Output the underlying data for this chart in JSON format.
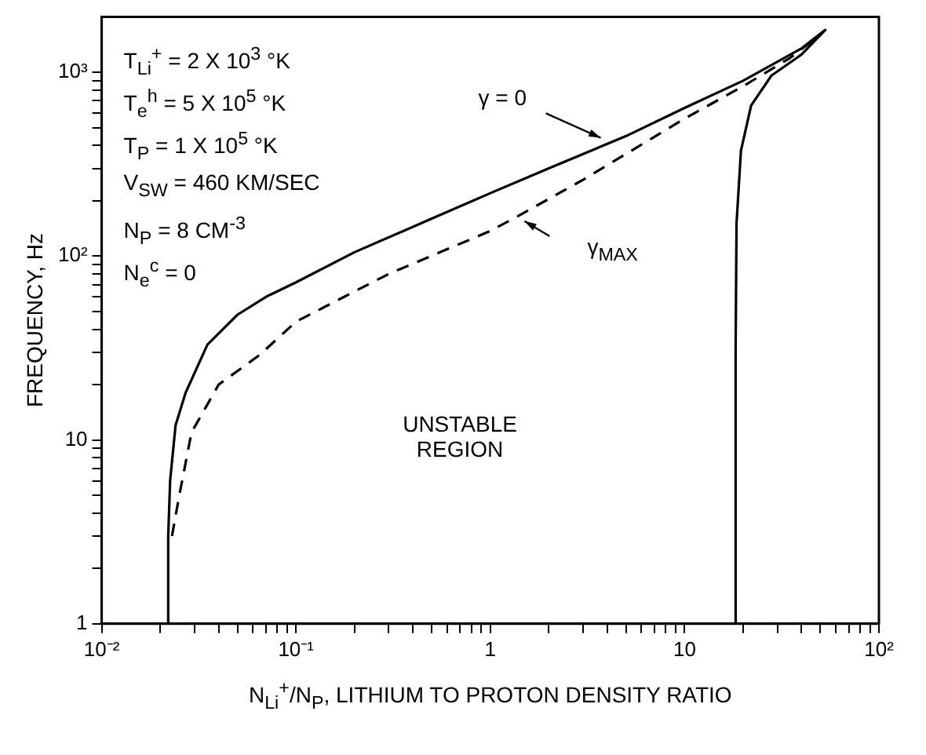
{
  "chart_data": {
    "type": "line",
    "xlabel": "N$_{Li}$$^{+}$/N$_{P}$, LITHIUM TO PROTON DENSITY RATIO",
    "ylabel": "FREQUENCY, Hz",
    "log": "xy",
    "grid": false,
    "legend": false,
    "marker": "none",
    "xlim": [
      0.01,
      100
    ],
    "ylim": [
      1,
      2000
    ],
    "xticks": [
      {
        "value": 0.01,
        "label": "10⁻²"
      },
      {
        "value": 0.02,
        "label": null
      },
      {
        "value": 0.03,
        "label": null
      },
      {
        "value": 0.04,
        "label": null
      },
      {
        "value": 0.05,
        "label": null
      },
      {
        "value": 0.06,
        "label": null
      },
      {
        "value": 0.07,
        "label": null
      },
      {
        "value": 0.08,
        "label": null
      },
      {
        "value": 0.09,
        "label": null
      },
      {
        "value": 0.1,
        "label": "10⁻¹"
      },
      {
        "value": 0.2,
        "label": null
      },
      {
        "value": 0.3,
        "label": null
      },
      {
        "value": 0.4,
        "label": null
      },
      {
        "value": 0.5,
        "label": null
      },
      {
        "value": 0.6,
        "label": null
      },
      {
        "value": 0.7,
        "label": null
      },
      {
        "value": 0.8,
        "label": null
      },
      {
        "value": 0.9,
        "label": null
      },
      1,
      {
        "value": 2,
        "label": null
      },
      {
        "value": 3,
        "label": null
      },
      {
        "value": 4,
        "label": null
      },
      {
        "value": 5,
        "label": null
      },
      {
        "value": 6,
        "label": null
      },
      {
        "value": 7,
        "label": null
      },
      {
        "value": 8,
        "label": null
      },
      {
        "value": 9,
        "label": null
      },
      10,
      {
        "value": 20,
        "label": null
      },
      {
        "value": 30,
        "label": null
      },
      {
        "value": 40,
        "label": null
      },
      {
        "value": 50,
        "label": null
      },
      {
        "value": 60,
        "label": null
      },
      {
        "value": 70,
        "label": null
      },
      {
        "value": 80,
        "label": null
      },
      {
        "value": 90,
        "label": null
      },
      {
        "value": 100,
        "label": "10²"
      }
    ],
    "yticks": [
      1,
      {
        "value": 2,
        "label": null
      },
      {
        "value": 3,
        "label": null
      },
      {
        "value": 4,
        "label": null
      },
      {
        "value": 5,
        "label": null
      },
      {
        "value": 6,
        "label": null
      },
      {
        "value": 7,
        "label": null
      },
      {
        "value": 8,
        "label": null
      },
      {
        "value": 9,
        "label": null
      },
      10,
      {
        "value": 20,
        "label": null
      },
      {
        "value": 30,
        "label": null
      },
      {
        "value": 40,
        "label": null
      },
      {
        "value": 50,
        "label": null
      },
      {
        "value": 60,
        "label": null
      },
      {
        "value": 70,
        "label": null
      },
      {
        "value": 80,
        "label": null
      },
      {
        "value": 90,
        "label": null
      },
      {
        "value": 100,
        "label": "10²"
      },
      {
        "value": 200,
        "label": null
      },
      {
        "value": 300,
        "label": null
      },
      {
        "value": 400,
        "label": null
      },
      {
        "value": 500,
        "label": null
      },
      {
        "value": 600,
        "label": null
      },
      {
        "value": 700,
        "label": null
      },
      {
        "value": 800,
        "label": null
      },
      {
        "value": 900,
        "label": null
      },
      {
        "value": 1000,
        "label": "10³"
      }
    ],
    "series": [
      {
        "color": "#000000",
        "line_style": "solid",
        "x": [
          0.022,
          0.022,
          0.0225,
          0.024,
          0.027,
          0.035,
          0.05,
          0.07,
          0.1,
          0.2,
          0.5,
          1,
          2,
          5,
          10,
          20,
          40,
          53,
          40,
          28,
          22,
          19.5,
          18.5,
          18.3,
          18.3
        ],
        "values": [
          1,
          3,
          6,
          12,
          18,
          33,
          48,
          60,
          72,
          105,
          160,
          220,
          300,
          450,
          640,
          900,
          1350,
          1700,
          1250,
          960,
          660,
          375,
          150,
          30,
          1
        ]
      },
      {
        "color": "#000000",
        "line_style": "dashed",
        "x": [
          0.023,
          0.025,
          0.029,
          0.04,
          0.065,
          0.1,
          0.3,
          1,
          1.4,
          3,
          10,
          20,
          35,
          50
        ],
        "values": [
          3,
          4.9,
          11,
          20,
          29,
          44,
          80,
          137,
          166,
          260,
          560,
          840,
          1200,
          1600
        ]
      }
    ],
    "annotations": [
      "T$_{Li}$$^{+}$ = 2 X 10$^{3}$ °K",
      "T$_{e}$$^{h}$ = 5 X 10$^{5}$ °K",
      "T$_{P}$ = 1 X 10$^{5}$ °K",
      "V$_{SW}$ = 460 KM/SEC",
      "N$_{P}$ = 8 CM$^{-3}$",
      "N$_{e}$$^{c}$ = 0",
      "UNSTABLE REGION",
      {
        "text": "γ = 0",
        "x": 3.7,
        "y": 440
      },
      {
        "text": "γ$_{MAX}$",
        "x": 1.5,
        "y": 155
      }
    ]
  }
}
